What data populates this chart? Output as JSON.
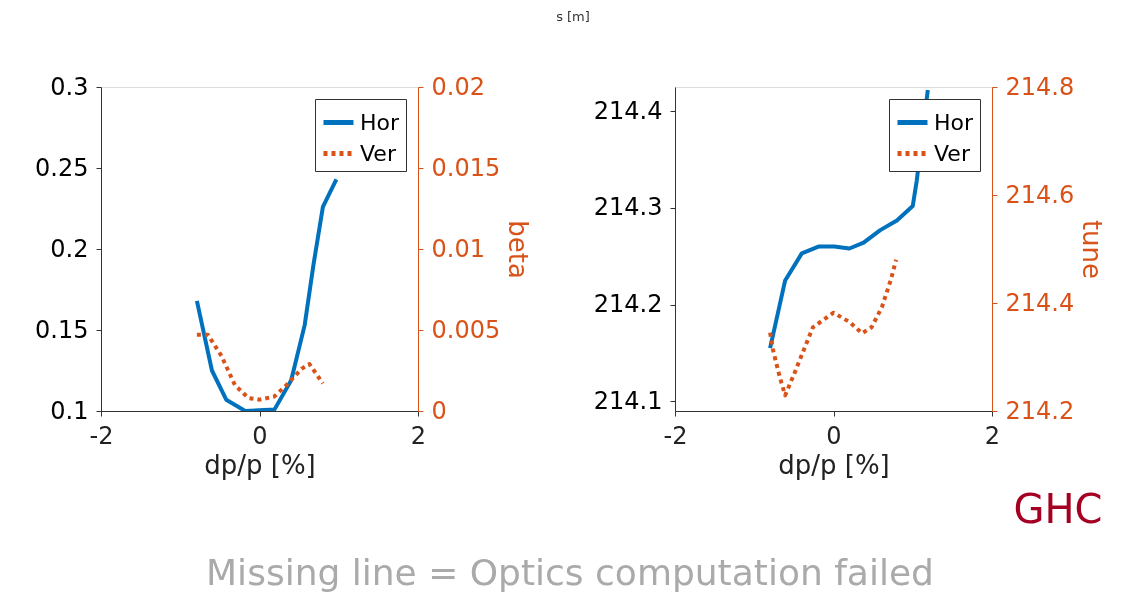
{
  "chart_data": [
    {
      "type": "line",
      "xlabel": "dp/p [%]",
      "y2label": "beta",
      "annotations": [
        "s [m]"
      ],
      "xlim": [
        -2,
        2
      ],
      "xticks": [
        -2,
        0,
        2
      ],
      "ylim": [
        0.1,
        0.3
      ],
      "yticks": [
        0.1,
        0.15,
        0.2,
        0.25,
        0.3
      ],
      "y2lim": [
        0,
        0.02
      ],
      "y2ticks": [
        0,
        0.005,
        0.01,
        0.015,
        0.02
      ],
      "legend": "top right",
      "grid": false,
      "marker": "none",
      "series": [
        {
          "name": "Hor",
          "color": "#0072bd",
          "line_style": "solid",
          "x": [
            -0.79,
            -0.6,
            -0.42,
            -0.18,
            0.19,
            0.4,
            0.57,
            0.68,
            0.8,
            0.97
          ],
          "values": [
            0.168,
            0.125,
            0.107,
            0.1,
            0.101,
            0.119,
            0.153,
            0.19,
            0.226,
            0.243
          ]
        },
        {
          "name": "Ver",
          "color": "#d95319",
          "line_style": "dotted",
          "axis": "y2",
          "x": [
            -0.79,
            -0.65,
            -0.48,
            -0.31,
            -0.14,
            0,
            0.19,
            0.36,
            0.53,
            0.63,
            0.8
          ],
          "values": [
            0.0047,
            0.0047,
            0.0034,
            0.0016,
            0.0008,
            0.0007,
            0.0009,
            0.0017,
            0.0026,
            0.0029,
            0.0017
          ]
        }
      ]
    },
    {
      "type": "line",
      "xlabel": "dp/p [%]",
      "y2label": "tune",
      "annotations": [
        "GHC",
        "Missing line = Optics computation failed"
      ],
      "xlim": [
        -2,
        2
      ],
      "xticks": [
        -2,
        0,
        2
      ],
      "ylim": [
        214.09,
        214.425
      ],
      "yticks": [
        214.1,
        214.2,
        214.3,
        214.4
      ],
      "y2lim": [
        214.2,
        214.8
      ],
      "y2ticks": [
        214.2,
        214.4,
        214.6,
        214.8
      ],
      "legend": "top right",
      "grid": false,
      "marker": "none",
      "series": [
        {
          "name": "Hor",
          "color": "#0072bd",
          "line_style": "solid",
          "x": [
            -0.8,
            -0.61,
            -0.4,
            -0.19,
            0.01,
            0.2,
            0.38,
            0.59,
            0.8,
            1.0,
            1.05,
            1.19
          ],
          "values": [
            214.155,
            214.225,
            214.253,
            214.26,
            214.26,
            214.258,
            214.264,
            214.277,
            214.287,
            214.302,
            214.328,
            214.422
          ]
        },
        {
          "name": "Ver",
          "color": "#d95319",
          "line_style": "dotted",
          "axis": "y2",
          "x": [
            -0.8,
            -0.76,
            -0.68,
            -0.61,
            -0.49,
            -0.26,
            0,
            0.2,
            0.36,
            0.48,
            0.61,
            0.73,
            0.79
          ],
          "values": [
            214.345,
            214.311,
            214.264,
            214.229,
            214.271,
            214.355,
            214.382,
            214.365,
            214.344,
            214.355,
            214.392,
            214.446,
            214.48
          ]
        }
      ]
    }
  ]
}
